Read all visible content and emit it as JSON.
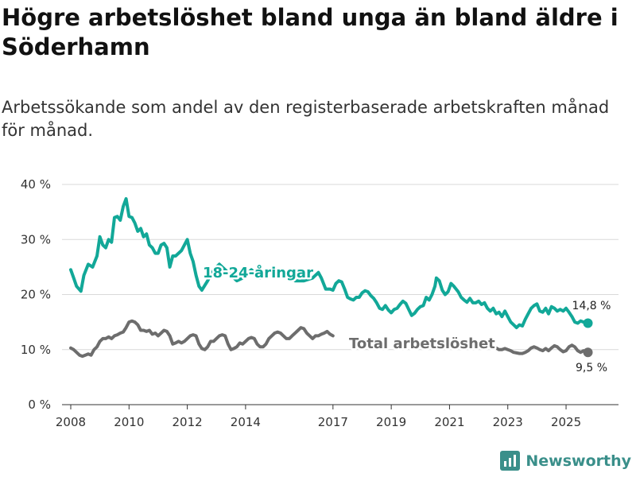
{
  "header": {
    "title": "Högre arbetslöshet bland unga än bland äldre i Söderhamn",
    "subtitle": "Arbetssökande som andel av den registerbaserade arbetskraften månad för månad."
  },
  "brand": {
    "name": "Newsworthy"
  },
  "colors": {
    "youth": "#12a898",
    "total": "#6d6d6d",
    "grid": "#d9d9d9"
  },
  "chart_data": {
    "type": "line",
    "title": "Högre arbetslöshet bland unga än bland äldre i Söderhamn",
    "subtitle": "Arbetssökande som andel av den registerbaserade arbetskraften månad för månad.",
    "xlabel": "",
    "ylabel": "",
    "xlim": [
      2007.7,
      2026.8
    ],
    "ylim": [
      0,
      40
    ],
    "grid": true,
    "y_ticks": [
      0,
      10,
      20,
      30,
      40
    ],
    "y_tick_labels": [
      "0 %",
      "10 %",
      "20 %",
      "30 %",
      "40 %"
    ],
    "x_ticks": [
      2008,
      2010,
      2012,
      2014,
      2017,
      2019,
      2021,
      2023,
      2025
    ],
    "x_tick_labels": [
      "2008",
      "2010",
      "2012",
      "2014",
      "2017",
      "2019",
      "2021",
      "2023",
      "2025"
    ],
    "series": [
      {
        "name": "18-24-åringar",
        "end_label": "14,8 %",
        "points": [
          [
            2008.0,
            24.5
          ],
          [
            2008.1,
            23.0
          ],
          [
            2008.2,
            21.5
          ],
          [
            2008.35,
            20.6
          ],
          [
            2008.45,
            23.5
          ],
          [
            2008.6,
            25.5
          ],
          [
            2008.75,
            25.0
          ],
          [
            2008.9,
            27.0
          ],
          [
            2009.0,
            30.5
          ],
          [
            2009.1,
            29.0
          ],
          [
            2009.2,
            28.5
          ],
          [
            2009.3,
            30.0
          ],
          [
            2009.4,
            29.5
          ],
          [
            2009.5,
            34.0
          ],
          [
            2009.6,
            34.2
          ],
          [
            2009.7,
            33.5
          ],
          [
            2009.8,
            36.0
          ],
          [
            2009.9,
            37.4
          ],
          [
            2010.0,
            34.2
          ],
          [
            2010.1,
            34.0
          ],
          [
            2010.2,
            33.0
          ],
          [
            2010.3,
            31.5
          ],
          [
            2010.4,
            32.0
          ],
          [
            2010.5,
            30.5
          ],
          [
            2010.6,
            31.0
          ],
          [
            2010.7,
            29.0
          ],
          [
            2010.8,
            28.5
          ],
          [
            2010.9,
            27.5
          ],
          [
            2011.0,
            27.5
          ],
          [
            2011.1,
            29.0
          ],
          [
            2011.2,
            29.3
          ],
          [
            2011.3,
            28.5
          ],
          [
            2011.4,
            25.0
          ],
          [
            2011.5,
            27.0
          ],
          [
            2011.6,
            27.0
          ],
          [
            2011.8,
            28.0
          ],
          [
            2011.95,
            29.5
          ],
          [
            2012.0,
            30.0
          ],
          [
            2012.1,
            27.5
          ],
          [
            2012.2,
            26.0
          ],
          [
            2012.3,
            23.5
          ],
          [
            2012.4,
            21.5
          ],
          [
            2012.5,
            20.8
          ],
          [
            2012.7,
            22.5
          ],
          [
            2012.9,
            24.5
          ],
          [
            2013.1,
            25.5
          ],
          [
            2013.3,
            24.5
          ],
          [
            2013.5,
            23.5
          ],
          [
            2013.7,
            22.5
          ],
          [
            2013.9,
            23.0
          ],
          [
            2014.2,
            24.5
          ],
          [
            2014.5,
            23.0
          ],
          [
            2014.8,
            24.5
          ],
          [
            2015.1,
            24.5
          ],
          [
            2015.4,
            23.5
          ],
          [
            2015.7,
            22.5
          ],
          [
            2016.0,
            22.5
          ],
          [
            2016.3,
            23.0
          ],
          [
            2016.5,
            24.0
          ],
          [
            2016.6,
            23.0
          ],
          [
            2016.75,
            21.0
          ],
          [
            2016.9,
            21.0
          ],
          [
            2017.0,
            20.8
          ],
          [
            2017.1,
            22.0
          ],
          [
            2017.2,
            22.5
          ],
          [
            2017.3,
            22.3
          ],
          [
            2017.4,
            21.0
          ],
          [
            2017.5,
            19.5
          ],
          [
            2017.6,
            19.2
          ],
          [
            2017.7,
            19.0
          ],
          [
            2017.8,
            19.5
          ],
          [
            2017.9,
            19.5
          ],
          [
            2018.0,
            20.3
          ],
          [
            2018.1,
            20.7
          ],
          [
            2018.2,
            20.5
          ],
          [
            2018.3,
            19.8
          ],
          [
            2018.4,
            19.3
          ],
          [
            2018.5,
            18.5
          ],
          [
            2018.6,
            17.5
          ],
          [
            2018.7,
            17.3
          ],
          [
            2018.8,
            18.0
          ],
          [
            2018.9,
            17.2
          ],
          [
            2019.0,
            16.7
          ],
          [
            2019.1,
            17.3
          ],
          [
            2019.2,
            17.5
          ],
          [
            2019.3,
            18.2
          ],
          [
            2019.4,
            18.8
          ],
          [
            2019.5,
            18.4
          ],
          [
            2019.6,
            17.3
          ],
          [
            2019.7,
            16.2
          ],
          [
            2019.8,
            16.6
          ],
          [
            2019.9,
            17.3
          ],
          [
            2020.0,
            17.8
          ],
          [
            2020.1,
            18.0
          ],
          [
            2020.2,
            19.5
          ],
          [
            2020.3,
            19.0
          ],
          [
            2020.4,
            20.0
          ],
          [
            2020.5,
            21.5
          ],
          [
            2020.55,
            23.0
          ],
          [
            2020.65,
            22.5
          ],
          [
            2020.75,
            20.8
          ],
          [
            2020.85,
            20.0
          ],
          [
            2020.95,
            20.5
          ],
          [
            2021.05,
            22.0
          ],
          [
            2021.15,
            21.5
          ],
          [
            2021.3,
            20.5
          ],
          [
            2021.4,
            19.5
          ],
          [
            2021.5,
            19.0
          ],
          [
            2021.6,
            18.6
          ],
          [
            2021.7,
            19.3
          ],
          [
            2021.8,
            18.5
          ],
          [
            2021.9,
            18.5
          ],
          [
            2022.0,
            18.8
          ],
          [
            2022.1,
            18.2
          ],
          [
            2022.2,
            18.5
          ],
          [
            2022.3,
            17.5
          ],
          [
            2022.4,
            17.0
          ],
          [
            2022.5,
            17.5
          ],
          [
            2022.6,
            16.5
          ],
          [
            2022.7,
            16.8
          ],
          [
            2022.8,
            16.0
          ],
          [
            2022.9,
            17.0
          ],
          [
            2023.0,
            16.0
          ],
          [
            2023.1,
            15.0
          ],
          [
            2023.2,
            14.5
          ],
          [
            2023.3,
            14.0
          ],
          [
            2023.4,
            14.5
          ],
          [
            2023.5,
            14.3
          ],
          [
            2023.6,
            15.5
          ],
          [
            2023.7,
            16.5
          ],
          [
            2023.8,
            17.5
          ],
          [
            2023.9,
            18.0
          ],
          [
            2024.0,
            18.3
          ],
          [
            2024.1,
            17.0
          ],
          [
            2024.2,
            16.8
          ],
          [
            2024.3,
            17.5
          ],
          [
            2024.4,
            16.5
          ],
          [
            2024.5,
            17.8
          ],
          [
            2024.6,
            17.5
          ],
          [
            2024.7,
            17.0
          ],
          [
            2024.8,
            17.3
          ],
          [
            2024.9,
            17.0
          ],
          [
            2025.0,
            17.5
          ],
          [
            2025.1,
            16.8
          ],
          [
            2025.2,
            16.0
          ],
          [
            2025.3,
            15.0
          ],
          [
            2025.4,
            14.8
          ],
          [
            2025.5,
            15.2
          ],
          [
            2025.6,
            15.0
          ],
          [
            2025.75,
            14.8
          ]
        ]
      },
      {
        "name": "Total arbetslöshet",
        "end_label": "9,5 %",
        "points": [
          [
            2008.0,
            10.3
          ],
          [
            2008.1,
            10.0
          ],
          [
            2008.2,
            9.5
          ],
          [
            2008.3,
            9.0
          ],
          [
            2008.4,
            8.8
          ],
          [
            2008.5,
            9.0
          ],
          [
            2008.6,
            9.2
          ],
          [
            2008.7,
            9.0
          ],
          [
            2008.8,
            10.0
          ],
          [
            2008.9,
            10.5
          ],
          [
            2009.0,
            11.5
          ],
          [
            2009.1,
            12.0
          ],
          [
            2009.2,
            12.0
          ],
          [
            2009.3,
            12.3
          ],
          [
            2009.4,
            12.0
          ],
          [
            2009.5,
            12.5
          ],
          [
            2009.6,
            12.7
          ],
          [
            2009.7,
            13.0
          ],
          [
            2009.8,
            13.2
          ],
          [
            2009.9,
            14.0
          ],
          [
            2010.0,
            15.0
          ],
          [
            2010.1,
            15.2
          ],
          [
            2010.2,
            15.0
          ],
          [
            2010.3,
            14.5
          ],
          [
            2010.4,
            13.5
          ],
          [
            2010.5,
            13.5
          ],
          [
            2010.6,
            13.3
          ],
          [
            2010.7,
            13.5
          ],
          [
            2010.8,
            12.8
          ],
          [
            2010.9,
            13.0
          ],
          [
            2011.0,
            12.5
          ],
          [
            2011.1,
            13.0
          ],
          [
            2011.2,
            13.5
          ],
          [
            2011.3,
            13.3
          ],
          [
            2011.4,
            12.5
          ],
          [
            2011.5,
            11.0
          ],
          [
            2011.6,
            11.2
          ],
          [
            2011.7,
            11.5
          ],
          [
            2011.8,
            11.2
          ],
          [
            2011.9,
            11.5
          ],
          [
            2012.0,
            12.0
          ],
          [
            2012.1,
            12.5
          ],
          [
            2012.2,
            12.7
          ],
          [
            2012.3,
            12.5
          ],
          [
            2012.4,
            11.0
          ],
          [
            2012.5,
            10.2
          ],
          [
            2012.6,
            10.0
          ],
          [
            2012.7,
            10.5
          ],
          [
            2012.8,
            11.5
          ],
          [
            2012.9,
            11.5
          ],
          [
            2013.0,
            12.0
          ],
          [
            2013.1,
            12.5
          ],
          [
            2013.2,
            12.7
          ],
          [
            2013.3,
            12.5
          ],
          [
            2013.4,
            11.0
          ],
          [
            2013.5,
            10.0
          ],
          [
            2013.6,
            10.2
          ],
          [
            2013.7,
            10.5
          ],
          [
            2013.8,
            11.2
          ],
          [
            2013.9,
            11.0
          ],
          [
            2014.0,
            11.5
          ],
          [
            2014.1,
            12.0
          ],
          [
            2014.2,
            12.2
          ],
          [
            2014.3,
            12.0
          ],
          [
            2014.4,
            11.0
          ],
          [
            2014.5,
            10.5
          ],
          [
            2014.6,
            10.5
          ],
          [
            2014.7,
            11.0
          ],
          [
            2014.8,
            12.0
          ],
          [
            2014.9,
            12.5
          ],
          [
            2015.0,
            13.0
          ],
          [
            2015.1,
            13.2
          ],
          [
            2015.2,
            13.0
          ],
          [
            2015.3,
            12.5
          ],
          [
            2015.4,
            12.0
          ],
          [
            2015.5,
            12.0
          ],
          [
            2015.6,
            12.5
          ],
          [
            2015.7,
            13.0
          ],
          [
            2015.8,
            13.5
          ],
          [
            2015.9,
            14.0
          ],
          [
            2016.0,
            13.8
          ],
          [
            2016.1,
            13.0
          ],
          [
            2016.2,
            12.5
          ],
          [
            2016.3,
            12.0
          ],
          [
            2016.4,
            12.5
          ],
          [
            2016.5,
            12.5
          ],
          [
            2016.6,
            12.8
          ],
          [
            2016.7,
            13.0
          ],
          [
            2016.8,
            13.3
          ],
          [
            2016.9,
            12.8
          ],
          [
            2017.0,
            12.5
          ],
          [
            2022.6,
            10.3
          ],
          [
            2022.7,
            10.0
          ],
          [
            2022.8,
            10.0
          ],
          [
            2022.9,
            10.2
          ],
          [
            2023.0,
            10.0
          ],
          [
            2023.1,
            9.8
          ],
          [
            2023.2,
            9.5
          ],
          [
            2023.3,
            9.4
          ],
          [
            2023.4,
            9.3
          ],
          [
            2023.5,
            9.3
          ],
          [
            2023.6,
            9.5
          ],
          [
            2023.7,
            9.8
          ],
          [
            2023.8,
            10.3
          ],
          [
            2023.9,
            10.5
          ],
          [
            2024.0,
            10.3
          ],
          [
            2024.1,
            10.0
          ],
          [
            2024.2,
            9.8
          ],
          [
            2024.3,
            10.2
          ],
          [
            2024.4,
            9.8
          ],
          [
            2024.5,
            10.3
          ],
          [
            2024.6,
            10.7
          ],
          [
            2024.7,
            10.5
          ],
          [
            2024.8,
            10.0
          ],
          [
            2024.9,
            9.6
          ],
          [
            2025.0,
            9.8
          ],
          [
            2025.1,
            10.5
          ],
          [
            2025.2,
            10.8
          ],
          [
            2025.3,
            10.5
          ],
          [
            2025.4,
            9.8
          ],
          [
            2025.5,
            9.5
          ],
          [
            2025.6,
            9.8
          ],
          [
            2025.75,
            9.5
          ]
        ]
      }
    ]
  }
}
